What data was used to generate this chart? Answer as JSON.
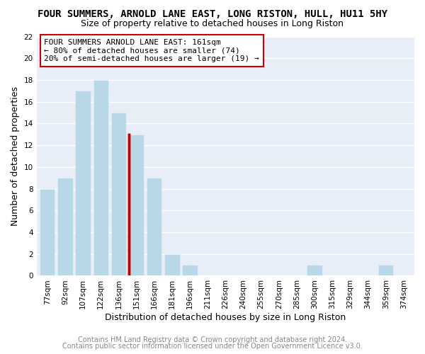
{
  "title": "FOUR SUMMERS, ARNOLD LANE EAST, LONG RISTON, HULL, HU11 5HY",
  "subtitle": "Size of property relative to detached houses in Long Riston",
  "xlabel": "Distribution of detached houses by size in Long Riston",
  "ylabel": "Number of detached properties",
  "bar_labels": [
    "77sqm",
    "92sqm",
    "107sqm",
    "122sqm",
    "136sqm",
    "151sqm",
    "166sqm",
    "181sqm",
    "196sqm",
    "211sqm",
    "226sqm",
    "240sqm",
    "255sqm",
    "270sqm",
    "285sqm",
    "300sqm",
    "315sqm",
    "329sqm",
    "344sqm",
    "359sqm",
    "374sqm"
  ],
  "bar_values": [
    8,
    9,
    17,
    18,
    15,
    13,
    9,
    2,
    1,
    0,
    0,
    0,
    0,
    0,
    0,
    1,
    0,
    0,
    0,
    1,
    0
  ],
  "bar_color": "#b8d8e8",
  "highlight_bar_index": 5,
  "highlight_bar_color": "#b8d8e8",
  "highlight_left_border_color": "#cc0000",
  "ylim": [
    0,
    22
  ],
  "yticks": [
    0,
    2,
    4,
    6,
    8,
    10,
    12,
    14,
    16,
    18,
    20,
    22
  ],
  "annotation_box_text": "FOUR SUMMERS ARNOLD LANE EAST: 161sqm\n← 80% of detached houses are smaller (74)\n20% of semi-detached houses are larger (19) →",
  "footer_line1": "Contains HM Land Registry data © Crown copyright and database right 2024.",
  "footer_line2": "Contains public sector information licensed under the Open Government Licence v3.0.",
  "background_color": "#ffffff",
  "plot_bg_color": "#e8eef8",
  "grid_color": "#ffffff",
  "title_fontsize": 10,
  "subtitle_fontsize": 9,
  "axis_label_fontsize": 9,
  "tick_fontsize": 7.5,
  "annotation_fontsize": 8,
  "footer_fontsize": 7
}
